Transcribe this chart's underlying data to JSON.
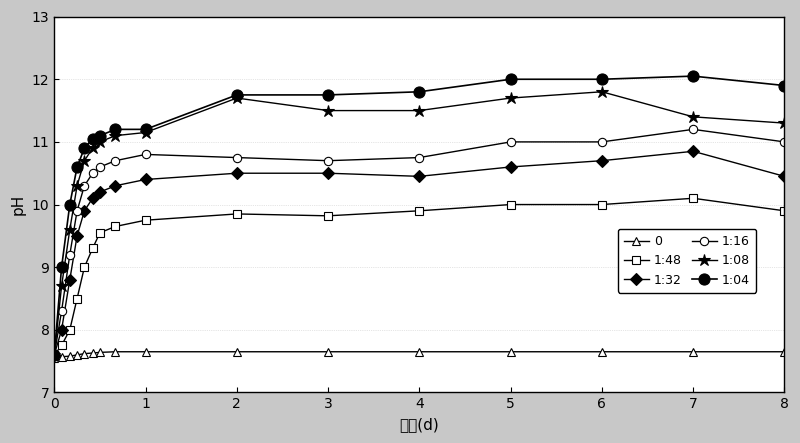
{
  "xlabel": "时间(d)",
  "ylabel": "pH",
  "xlim": [
    0,
    8
  ],
  "ylim": [
    7,
    13
  ],
  "yticks": [
    7,
    8,
    9,
    10,
    11,
    12,
    13
  ],
  "xticks": [
    0,
    1,
    2,
    3,
    4,
    5,
    6,
    7,
    8
  ],
  "series": {
    "0": {
      "x": [
        0,
        0.08,
        0.17,
        0.25,
        0.33,
        0.42,
        0.5,
        0.67,
        1,
        2,
        3,
        4,
        5,
        6,
        7,
        8
      ],
      "y": [
        7.55,
        7.57,
        7.58,
        7.6,
        7.62,
        7.63,
        7.64,
        7.65,
        7.65,
        7.65,
        7.65,
        7.65,
        7.65,
        7.65,
        7.65,
        7.65
      ],
      "marker": "^",
      "markersize": 6,
      "color": "black",
      "linestyle": "-",
      "linewidth": 1.0,
      "markerfacecolor": "white",
      "label": "0"
    },
    "1:48": {
      "x": [
        0,
        0.08,
        0.17,
        0.25,
        0.33,
        0.42,
        0.5,
        0.67,
        1,
        2,
        3,
        4,
        5,
        6,
        7,
        8
      ],
      "y": [
        7.6,
        7.75,
        8.0,
        8.5,
        9.0,
        9.3,
        9.55,
        9.65,
        9.75,
        9.85,
        9.82,
        9.9,
        10.0,
        10.0,
        10.1,
        9.9
      ],
      "marker": "s",
      "markersize": 6,
      "color": "black",
      "linestyle": "-",
      "linewidth": 1.0,
      "markerfacecolor": "white",
      "label": "1:48"
    },
    "1:32": {
      "x": [
        0,
        0.08,
        0.17,
        0.25,
        0.33,
        0.42,
        0.5,
        0.67,
        1,
        2,
        3,
        4,
        5,
        6,
        7,
        8
      ],
      "y": [
        7.6,
        8.0,
        8.8,
        9.5,
        9.9,
        10.1,
        10.2,
        10.3,
        10.4,
        10.5,
        10.5,
        10.45,
        10.6,
        10.7,
        10.85,
        10.45
      ],
      "marker": "D",
      "markersize": 6,
      "color": "black",
      "linestyle": "-",
      "linewidth": 1.0,
      "markerfacecolor": "black",
      "label": "1:32"
    },
    "1:16": {
      "x": [
        0,
        0.08,
        0.17,
        0.25,
        0.33,
        0.42,
        0.5,
        0.67,
        1,
        2,
        3,
        4,
        5,
        6,
        7,
        8
      ],
      "y": [
        7.6,
        8.3,
        9.2,
        9.9,
        10.3,
        10.5,
        10.6,
        10.7,
        10.8,
        10.75,
        10.7,
        10.75,
        11.0,
        11.0,
        11.2,
        11.0
      ],
      "marker": "o",
      "markersize": 6,
      "color": "black",
      "linestyle": "-",
      "linewidth": 1.0,
      "markerfacecolor": "white",
      "label": "1:16"
    },
    "1:08": {
      "x": [
        0,
        0.08,
        0.17,
        0.25,
        0.33,
        0.42,
        0.5,
        0.67,
        1,
        2,
        3,
        4,
        5,
        6,
        7,
        8
      ],
      "y": [
        7.6,
        8.7,
        9.6,
        10.3,
        10.7,
        10.9,
        11.0,
        11.1,
        11.15,
        11.7,
        11.5,
        11.5,
        11.7,
        11.8,
        11.4,
        11.3
      ],
      "marker": "*",
      "markersize": 9,
      "color": "black",
      "linestyle": "-",
      "linewidth": 1.0,
      "markerfacecolor": "black",
      "label": "1:08"
    },
    "1:04": {
      "x": [
        0,
        0.08,
        0.17,
        0.25,
        0.33,
        0.42,
        0.5,
        0.67,
        1,
        2,
        3,
        4,
        5,
        6,
        7,
        8
      ],
      "y": [
        7.6,
        9.0,
        10.0,
        10.6,
        10.9,
        11.05,
        11.1,
        11.2,
        11.2,
        11.75,
        11.75,
        11.8,
        12.0,
        12.0,
        12.05,
        11.9
      ],
      "marker": "o",
      "markersize": 8,
      "color": "black",
      "linestyle": "-",
      "linewidth": 1.2,
      "markerfacecolor": "black",
      "label": "1:04"
    }
  },
  "plot_order": [
    "0",
    "1:48",
    "1:32",
    "1:16",
    "1:08",
    "1:04"
  ],
  "legend_order": [
    "0",
    "1:48",
    "1:32",
    "1:16",
    "1:08",
    "1:04"
  ],
  "fig_bg": "#c8c8c8",
  "ax_bg": "#ffffff",
  "border_color": "#000000",
  "grid_color": "#aaaaaa",
  "grid_linestyle": ":",
  "grid_linewidth": 0.5
}
